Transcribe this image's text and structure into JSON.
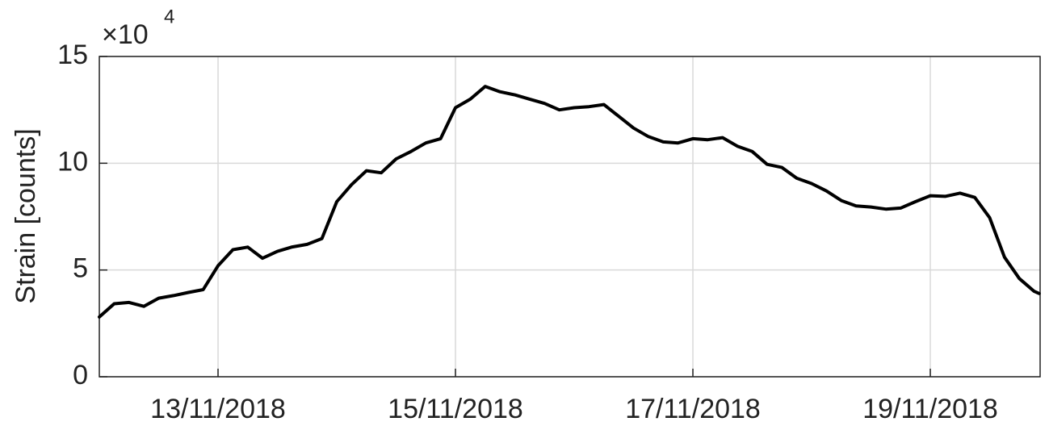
{
  "chart_data": {
    "type": "line",
    "y_label": "Strain [counts]",
    "y_scale_label": "×10",
    "y_scale_exponent": "4",
    "color": "#000000",
    "grid": true,
    "x": [
      "2018-11-12T00:00",
      "2018-11-12T03:00",
      "2018-11-12T06:00",
      "2018-11-12T09:00",
      "2018-11-12T12:00",
      "2018-11-12T15:00",
      "2018-11-12T18:00",
      "2018-11-12T21:00",
      "2018-11-13T00:00",
      "2018-11-13T03:00",
      "2018-11-13T06:00",
      "2018-11-13T09:00",
      "2018-11-13T12:00",
      "2018-11-13T15:00",
      "2018-11-13T18:00",
      "2018-11-13T21:00",
      "2018-11-14T00:00",
      "2018-11-14T03:00",
      "2018-11-14T06:00",
      "2018-11-14T09:00",
      "2018-11-14T12:00",
      "2018-11-14T15:00",
      "2018-11-14T18:00",
      "2018-11-14T21:00",
      "2018-11-15T00:00",
      "2018-11-15T03:00",
      "2018-11-15T06:00",
      "2018-11-15T09:00",
      "2018-11-15T12:00",
      "2018-11-15T15:00",
      "2018-11-15T18:00",
      "2018-11-15T21:00",
      "2018-11-16T00:00",
      "2018-11-16T03:00",
      "2018-11-16T06:00",
      "2018-11-16T09:00",
      "2018-11-16T12:00",
      "2018-11-16T15:00",
      "2018-11-16T18:00",
      "2018-11-16T21:00",
      "2018-11-17T00:00",
      "2018-11-17T03:00",
      "2018-11-17T06:00",
      "2018-11-17T09:00",
      "2018-11-17T12:00",
      "2018-11-17T15:00",
      "2018-11-17T18:00",
      "2018-11-17T21:00",
      "2018-11-18T00:00",
      "2018-11-18T03:00",
      "2018-11-18T06:00",
      "2018-11-18T09:00",
      "2018-11-18T12:00",
      "2018-11-18T15:00",
      "2018-11-18T18:00",
      "2018-11-18T21:00",
      "2018-11-19T00:00",
      "2018-11-19T03:00",
      "2018-11-19T06:00",
      "2018-11-19T09:00",
      "2018-11-19T12:00",
      "2018-11-19T15:00",
      "2018-11-19T18:00",
      "2018-11-19T21:00",
      "2018-11-19T22:00"
    ],
    "values": [
      28000,
      34200,
      34800,
      33000,
      36800,
      38000,
      39500,
      40800,
      52000,
      59500,
      60700,
      55500,
      58700,
      60800,
      62000,
      64700,
      82000,
      90000,
      96500,
      95500,
      102000,
      105500,
      109500,
      111500,
      126000,
      130000,
      136000,
      133500,
      132000,
      130000,
      128000,
      125000,
      126000,
      126500,
      127500,
      122000,
      116500,
      112500,
      110000,
      109500,
      111500,
      111000,
      112000,
      108000,
      105500,
      99500,
      98000,
      93000,
      90500,
      87000,
      82500,
      80000,
      79500,
      78500,
      79000,
      82000,
      84800,
      84500,
      86000,
      84000,
      74500,
      56000,
      46000,
      40000,
      39000
    ],
    "xlim": [
      "2018-11-12T00:00",
      "2018-11-19T22:12"
    ],
    "xticks": [
      {
        "value": "2018-11-13T00:00",
        "label": "13/11/2018"
      },
      {
        "value": "2018-11-15T00:00",
        "label": "15/11/2018"
      },
      {
        "value": "2018-11-17T00:00",
        "label": "17/11/2018"
      },
      {
        "value": "2018-11-19T00:00",
        "label": "19/11/2018"
      }
    ],
    "ylim": [
      0,
      150000
    ],
    "yticks": [
      {
        "value": 0,
        "label": "0"
      },
      {
        "value": 50000,
        "label": "5"
      },
      {
        "value": 100000,
        "label": "10"
      },
      {
        "value": 150000,
        "label": "15"
      }
    ]
  }
}
